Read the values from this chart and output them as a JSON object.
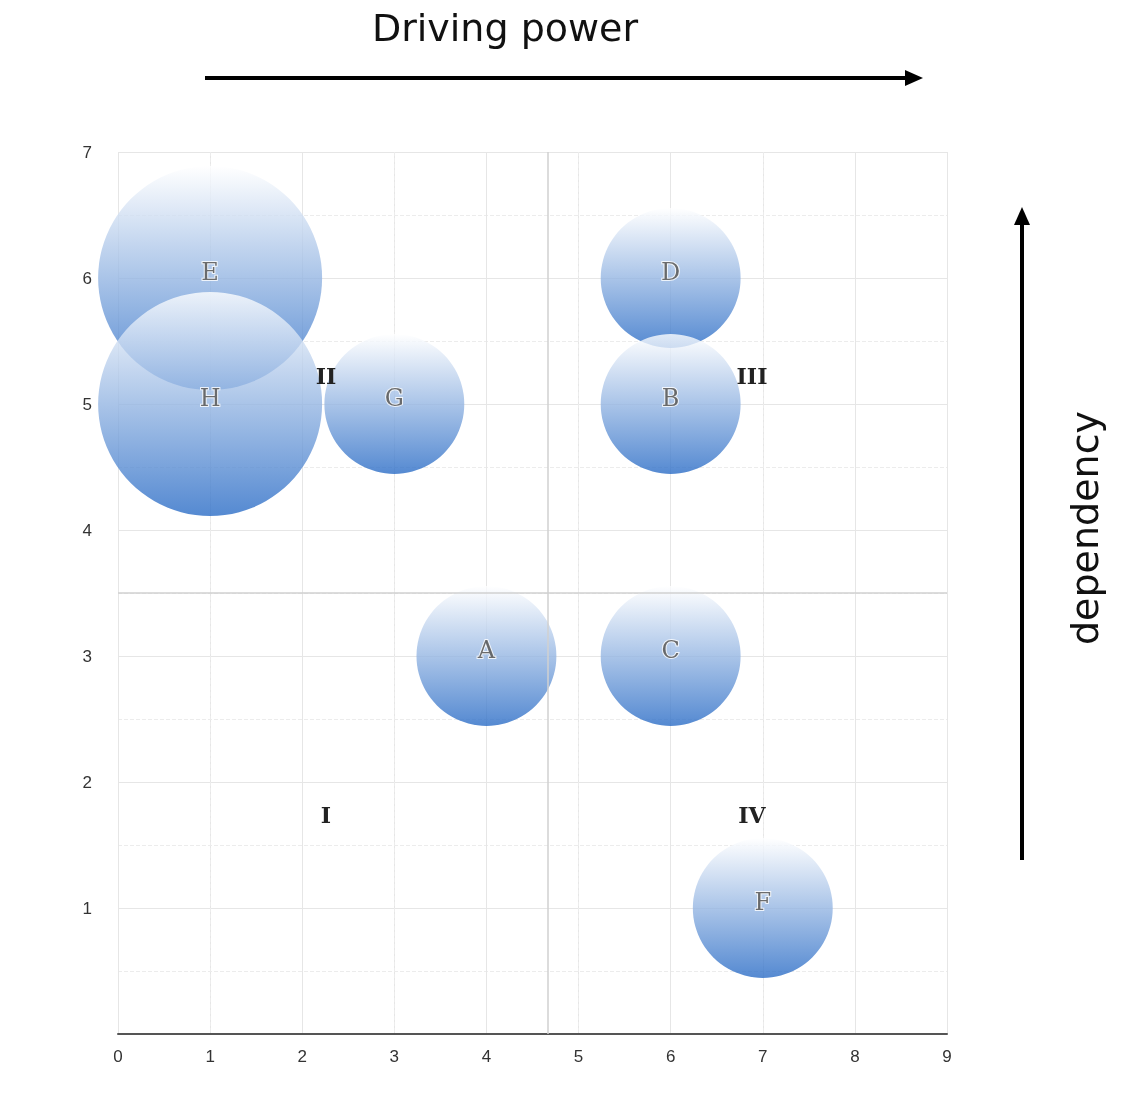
{
  "chart_data": {
    "type": "bubble",
    "xlabel": "Driving power",
    "ylabel": "dependency",
    "xlim": [
      0,
      9
    ],
    "xticks": [
      0,
      1,
      2,
      3,
      4,
      5,
      6,
      7,
      8,
      9
    ],
    "ylim": [
      0,
      7
    ],
    "yticks": [
      1,
      2,
      3,
      4,
      5,
      6,
      7
    ],
    "grid": true,
    "legend": false,
    "series": [
      {
        "name": "E",
        "color": "#2a6cc6",
        "x": [
          1
        ],
        "values": [
          6
        ],
        "sizes": [
          1
        ]
      },
      {
        "name": "H",
        "color": "#2a6cc6",
        "x": [
          1
        ],
        "values": [
          5
        ],
        "sizes": [
          1
        ]
      },
      {
        "name": "G",
        "color": "#2a6cc6",
        "x": [
          3
        ],
        "values": [
          5
        ],
        "sizes": [
          0.39
        ]
      },
      {
        "name": "D",
        "color": "#2a6cc6",
        "x": [
          6
        ],
        "values": [
          6
        ],
        "sizes": [
          0.39
        ]
      },
      {
        "name": "B",
        "color": "#2a6cc6",
        "x": [
          6
        ],
        "values": [
          5
        ],
        "sizes": [
          0.39
        ]
      },
      {
        "name": "A",
        "color": "#2a6cc6",
        "x": [
          4
        ],
        "values": [
          3
        ],
        "sizes": [
          0.39
        ]
      },
      {
        "name": "C",
        "color": "#2a6cc6",
        "x": [
          6
        ],
        "values": [
          3
        ],
        "sizes": [
          0.39
        ]
      },
      {
        "name": "F",
        "color": "#2a6cc6",
        "x": [
          7
        ],
        "values": [
          1
        ],
        "sizes": [
          0.39
        ]
      }
    ],
    "ref_lines": [
      {
        "axis": "x",
        "value": 4.67,
        "color": "#d0d0d0"
      },
      {
        "axis": "y",
        "value": 3.5,
        "color": "#d0d0d0"
      }
    ],
    "annotations": [
      "I",
      "II",
      "III",
      "IV"
    ]
  }
}
